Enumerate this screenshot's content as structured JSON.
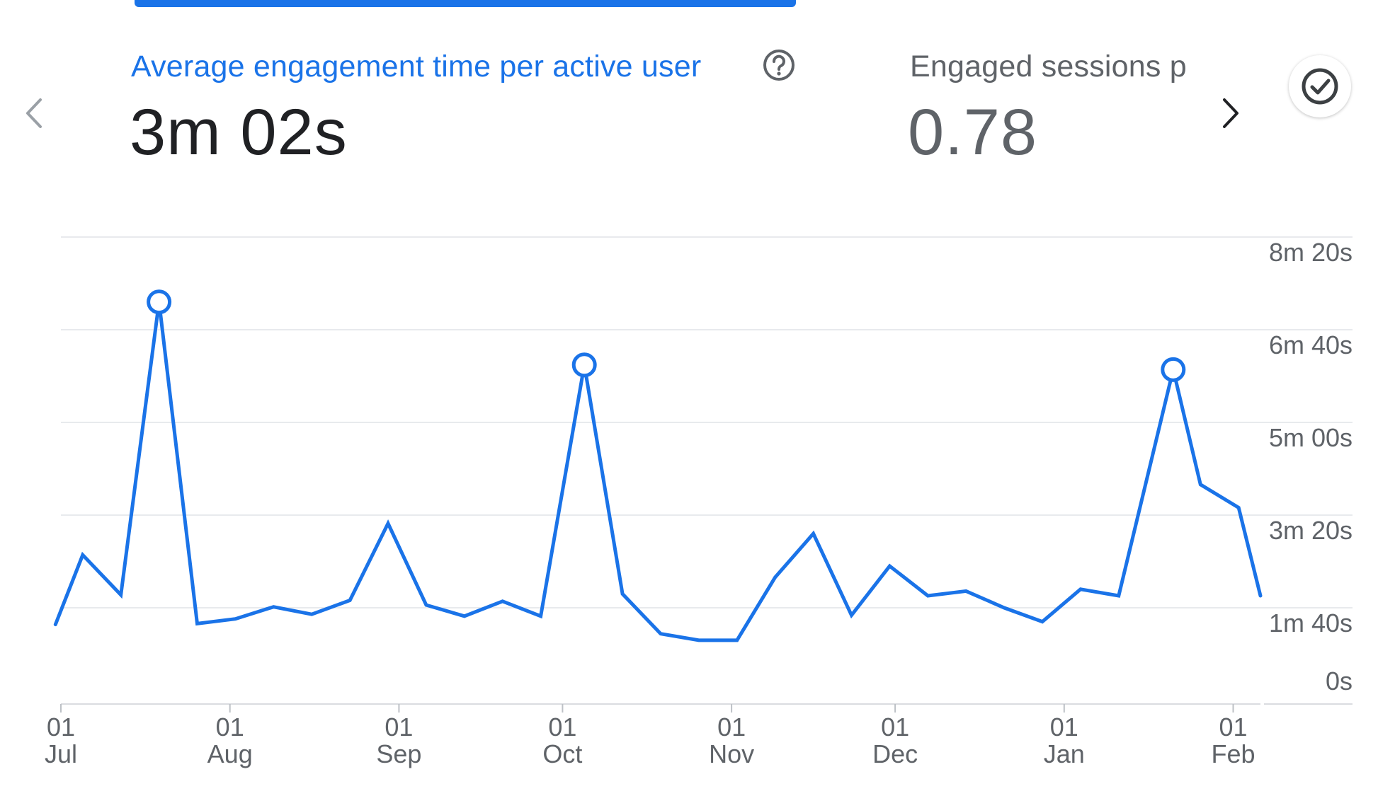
{
  "header": {
    "prev_icon": "chevron-left-icon",
    "next_icon": "chevron-right-icon",
    "check_icon": "check-circle-icon",
    "help_icon": "help-circle-icon"
  },
  "metrics": [
    {
      "label": "Average engagement time per active user",
      "value": "3m 02s",
      "color": "#1a73e8"
    },
    {
      "label": "Engaged sessions p",
      "value": "0.78",
      "color": "#5f6368"
    }
  ],
  "colors": {
    "accent": "#1a73e8",
    "grid": "#e8eaed",
    "text_muted": "#5f6368"
  },
  "chart_data": {
    "type": "line",
    "title": "",
    "xlabel": "",
    "ylabel": "",
    "ylim": [
      0,
      500
    ],
    "y_ticks": [
      0,
      100,
      200,
      300,
      400,
      500
    ],
    "y_tick_labels": [
      "0s",
      "1m 40s",
      "3m 20s",
      "5m 00s",
      "6m 40s",
      "8m 20s"
    ],
    "x_tick_labels": [
      {
        "day": "01",
        "month": "Jul",
        "date": "2023-07-01"
      },
      {
        "day": "01",
        "month": "Aug",
        "date": "2023-08-01"
      },
      {
        "day": "01",
        "month": "Sep",
        "date": "2023-09-01"
      },
      {
        "day": "01",
        "month": "Oct",
        "date": "2023-10-01"
      },
      {
        "day": "01",
        "month": "Nov",
        "date": "2023-11-01"
      },
      {
        "day": "01",
        "month": "Dec",
        "date": "2023-12-01"
      },
      {
        "day": "01",
        "month": "Jan",
        "date": "2024-01-01"
      },
      {
        "day": "01",
        "month": "Feb",
        "date": "2024-02-01"
      }
    ],
    "x_range": [
      "2023-07-01",
      "2024-02-06"
    ],
    "grid": true,
    "markers": [
      {
        "date": "2023-07-19",
        "y": 430
      },
      {
        "date": "2023-10-05",
        "y": 362
      },
      {
        "date": "2024-01-21",
        "y": 357
      }
    ],
    "series": [
      {
        "values": [
          {
            "x": "2023-06-30",
            "y": 82
          },
          {
            "x": "2023-07-05",
            "y": 157
          },
          {
            "x": "2023-07-12",
            "y": 114
          },
          {
            "x": "2023-07-19",
            "y": 430
          },
          {
            "x": "2023-07-26",
            "y": 83
          },
          {
            "x": "2023-08-02",
            "y": 88
          },
          {
            "x": "2023-08-09",
            "y": 101
          },
          {
            "x": "2023-08-16",
            "y": 93
          },
          {
            "x": "2023-08-23",
            "y": 108
          },
          {
            "x": "2023-08-30",
            "y": 191
          },
          {
            "x": "2023-09-06",
            "y": 103
          },
          {
            "x": "2023-09-13",
            "y": 91
          },
          {
            "x": "2023-09-20",
            "y": 107
          },
          {
            "x": "2023-09-27",
            "y": 91
          },
          {
            "x": "2023-10-05",
            "y": 362
          },
          {
            "x": "2023-10-12",
            "y": 115
          },
          {
            "x": "2023-10-19",
            "y": 72
          },
          {
            "x": "2023-10-26",
            "y": 65
          },
          {
            "x": "2023-11-02",
            "y": 65
          },
          {
            "x": "2023-11-09",
            "y": 133
          },
          {
            "x": "2023-11-16",
            "y": 180
          },
          {
            "x": "2023-11-23",
            "y": 92
          },
          {
            "x": "2023-11-30",
            "y": 145
          },
          {
            "x": "2023-12-07",
            "y": 113
          },
          {
            "x": "2023-12-14",
            "y": 118
          },
          {
            "x": "2023-12-21",
            "y": 100
          },
          {
            "x": "2023-12-28",
            "y": 85
          },
          {
            "x": "2024-01-04",
            "y": 120
          },
          {
            "x": "2024-01-11",
            "y": 113
          },
          {
            "x": "2024-01-21",
            "y": 357
          },
          {
            "x": "2024-01-26",
            "y": 233
          },
          {
            "x": "2024-02-02",
            "y": 208
          },
          {
            "x": "2024-02-06",
            "y": 113
          }
        ]
      }
    ]
  }
}
